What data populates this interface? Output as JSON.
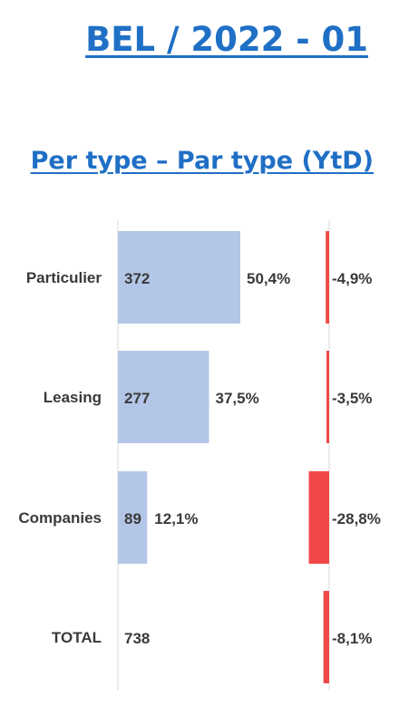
{
  "title": "BEL / 2022 - 01",
  "subtitle": "Per type – Par type (YtD)",
  "colors": {
    "bar": "#b4c6e7",
    "change": "#f04848",
    "axis": "#d9d9d9",
    "text": "#3a3a3a",
    "heading": "#1f6fc5"
  },
  "chart_data": {
    "type": "bar",
    "orientation": "horizontal",
    "categories": [
      "Particulier",
      "Leasing",
      "Companies",
      "TOTAL"
    ],
    "series": [
      {
        "values": [
          372,
          277,
          89,
          738
        ],
        "labels": [
          "372",
          "277",
          "89",
          "738"
        ],
        "share_labels": [
          "50,4%",
          "37,5%",
          "12,1%",
          ""
        ]
      },
      {
        "values": [
          -4.9,
          -3.5,
          -28.8,
          -8.1
        ],
        "labels": [
          "-4,9%",
          "-3,5%",
          "-28,8%",
          "-8,1%"
        ]
      }
    ],
    "bar_category_count": 3,
    "grid": false,
    "legend": "none"
  }
}
